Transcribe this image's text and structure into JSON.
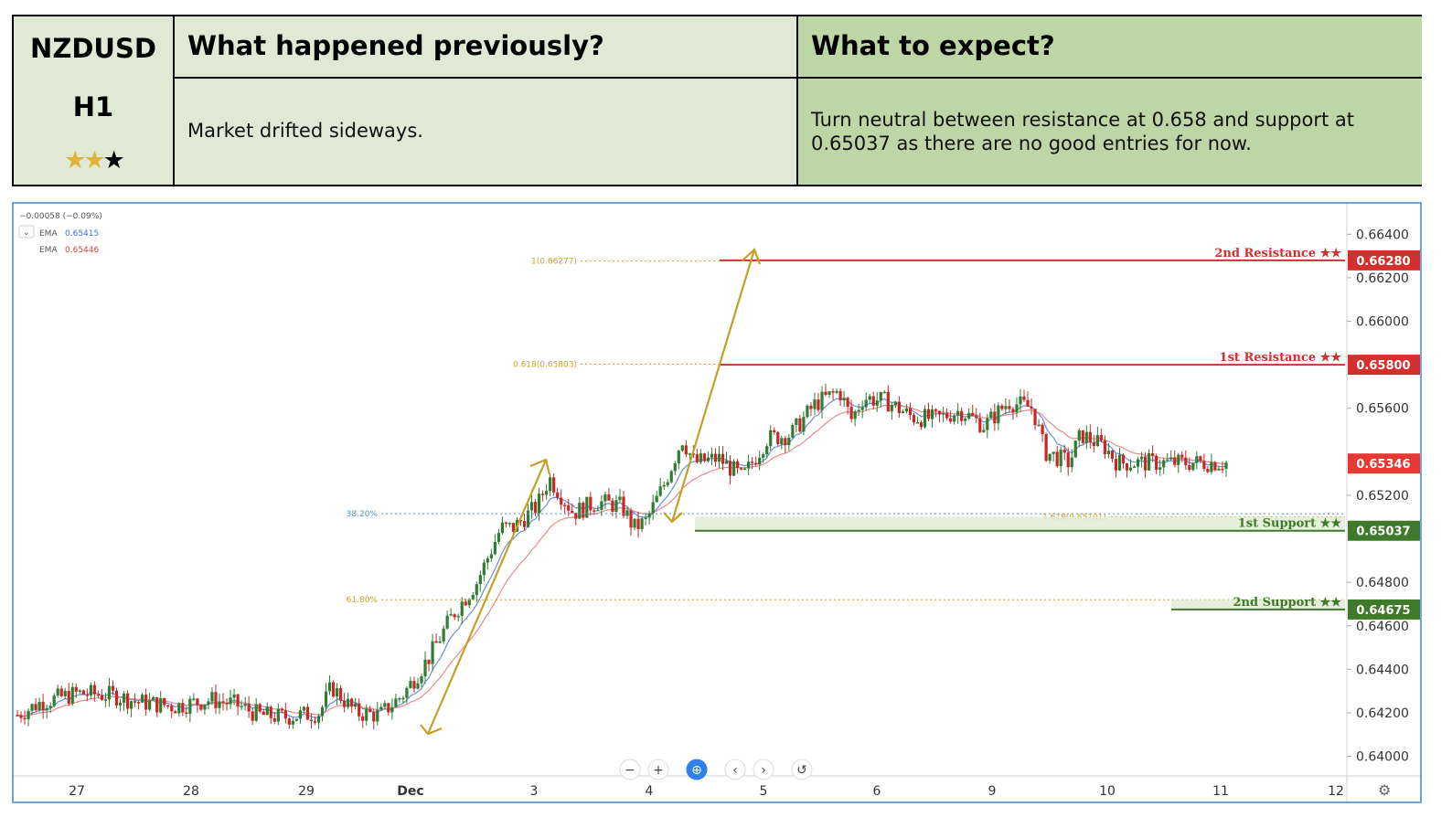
{
  "header": {
    "symbol": "NZDUSD",
    "timeframe": "H1",
    "stars": {
      "filled": 2,
      "total": 3
    },
    "prev_title": "What happened previously?",
    "prev_text": "Market drifted sideways.",
    "expect_title": "What to expect?",
    "expect_text": "Turn neutral between resistance at 0.658 and support at 0.65037 as there are no good entries for now."
  },
  "legend": {
    "change": "−0.00058 (−0.09%)",
    "ema1_label": "EMA",
    "ema1_value": "0.65415",
    "ema2_label": "EMA",
    "ema2_value": "0.65446"
  },
  "colors": {
    "resistance": "#d32f2f",
    "support": "#3f7a2a",
    "fib": "#c9a227",
    "fib_blue": "#4a90d9",
    "ema_fast": "#6b8fd6",
    "ema_slow": "#e88c8c",
    "candle_up": "#2e7d32",
    "candle_down": "#c62828",
    "price_tag": "#e53935"
  },
  "controls": [
    "−",
    "+",
    "⊕",
    "‹",
    "›",
    "↺"
  ],
  "chart_data": {
    "type": "candlestick",
    "y_range": [
      0.6391,
      0.6654
    ],
    "x_labels": [
      "27",
      "28",
      "29",
      "Dec",
      "3",
      "4",
      "5",
      "6",
      "9",
      "10",
      "11",
      "12"
    ],
    "y_ticks": [
      "0.66400",
      "0.66200",
      "0.66000",
      "0.65600",
      "0.65200",
      "0.64800",
      "0.64600",
      "0.64400",
      "0.64200",
      "0.64000"
    ],
    "levels": [
      {
        "label": "2nd Resistance ★★",
        "value": 0.6628,
        "tag": "0.66280",
        "kind": "resistance"
      },
      {
        "label": "1st Resistance ★★",
        "value": 0.658,
        "tag": "0.65800",
        "kind": "resistance"
      },
      {
        "label": "1st Support ★★",
        "value": 0.65037,
        "tag": "0.65037",
        "kind": "support"
      },
      {
        "label": "2nd Support ★★",
        "value": 0.64675,
        "tag": "0.64675",
        "kind": "support"
      }
    ],
    "current_price": {
      "value": 0.65346,
      "tag": "0.65346"
    },
    "fib_labels": [
      {
        "label": "1(0.66277)",
        "value": 0.66277
      },
      {
        "label": "0.618(0.65803)",
        "value": 0.65803
      },
      {
        "label": "38.20%",
        "value": 0.65115
      },
      {
        "label": "61.80%",
        "value": 0.6472
      },
      {
        "label": "1.618(0.65101)",
        "value": 0.65101
      }
    ],
    "price_path": [
      [
        0,
        0.6419
      ],
      [
        0.02,
        0.6425
      ],
      [
        0.05,
        0.6429
      ],
      [
        0.08,
        0.6428
      ],
      [
        0.1,
        0.6425
      ],
      [
        0.13,
        0.6423
      ],
      [
        0.16,
        0.6426
      ],
      [
        0.18,
        0.6424
      ],
      [
        0.2,
        0.6419
      ],
      [
        0.22,
        0.6418
      ],
      [
        0.25,
        0.642
      ],
      [
        0.26,
        0.6432
      ],
      [
        0.28,
        0.642
      ],
      [
        0.3,
        0.6419
      ],
      [
        0.32,
        0.6429
      ],
      [
        0.34,
        0.6445
      ],
      [
        0.36,
        0.6465
      ],
      [
        0.38,
        0.648
      ],
      [
        0.4,
        0.6505
      ],
      [
        0.41,
        0.6505
      ],
      [
        0.43,
        0.6515
      ],
      [
        0.44,
        0.6528
      ],
      [
        0.46,
        0.6512
      ],
      [
        0.48,
        0.6517
      ],
      [
        0.5,
        0.6515
      ],
      [
        0.51,
        0.6505
      ],
      [
        0.52,
        0.6508
      ],
      [
        0.535,
        0.6525
      ],
      [
        0.55,
        0.6546
      ],
      [
        0.56,
        0.6535
      ],
      [
        0.58,
        0.6537
      ],
      [
        0.6,
        0.6528
      ],
      [
        0.62,
        0.6546
      ],
      [
        0.64,
        0.6548
      ],
      [
        0.66,
        0.6562
      ],
      [
        0.68,
        0.6568
      ],
      [
        0.69,
        0.6555
      ],
      [
        0.7,
        0.6565
      ],
      [
        0.72,
        0.6563
      ],
      [
        0.74,
        0.6556
      ],
      [
        0.76,
        0.6555
      ],
      [
        0.78,
        0.6559
      ],
      [
        0.8,
        0.6552
      ],
      [
        0.82,
        0.6563
      ],
      [
        0.84,
        0.656
      ],
      [
        0.85,
        0.654
      ],
      [
        0.87,
        0.6535
      ],
      [
        0.88,
        0.6548
      ],
      [
        0.9,
        0.6542
      ],
      [
        0.91,
        0.6535
      ]
    ]
  }
}
